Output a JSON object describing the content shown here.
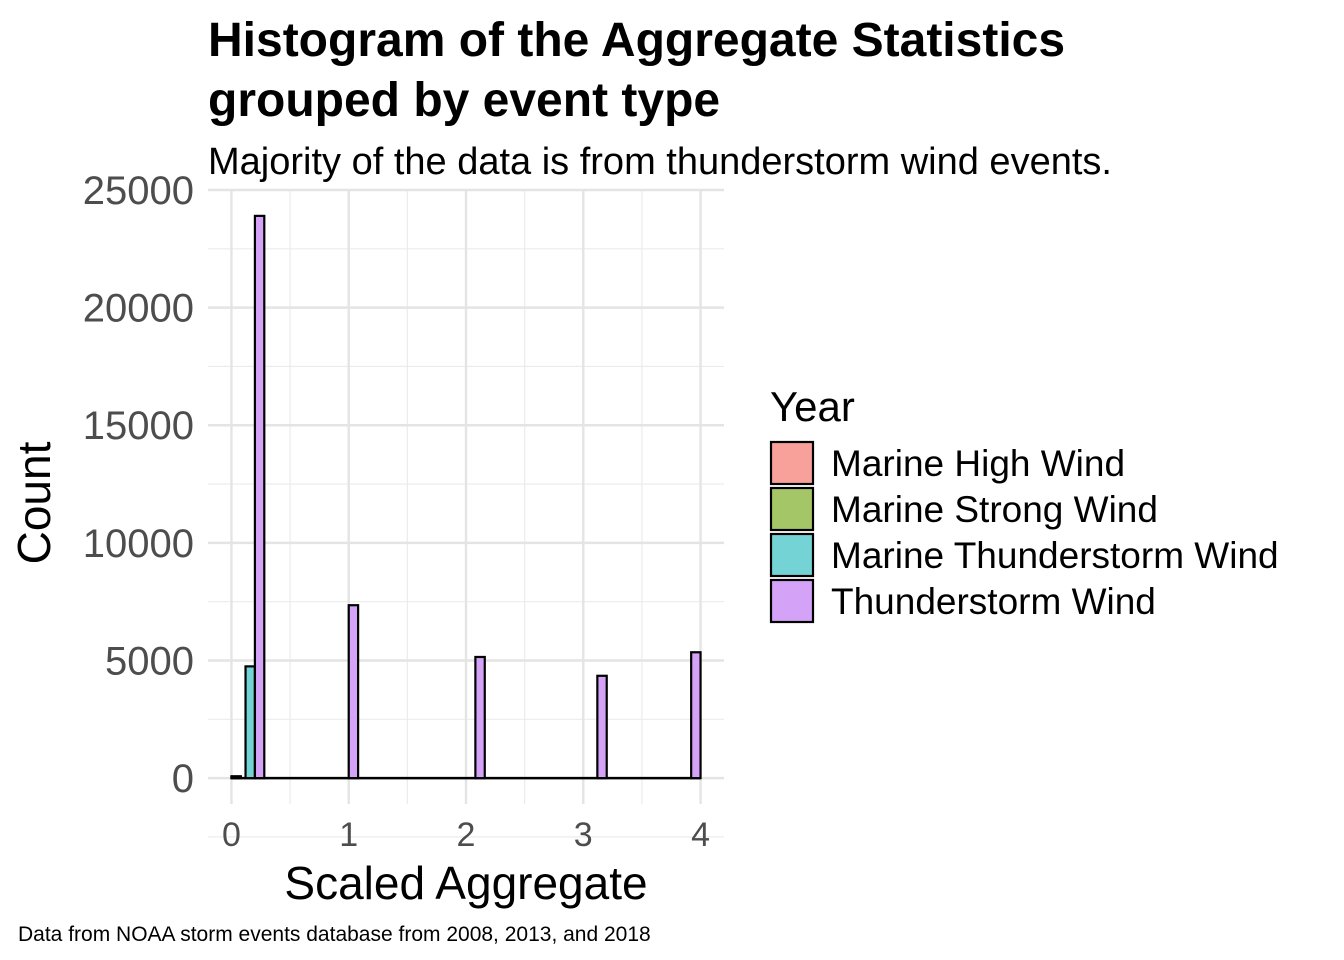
{
  "chart_data": {
    "type": "bar",
    "title_lines": [
      "Histogram of the Aggregate Statistics",
      "grouped by event type"
    ],
    "subtitle": "Majority of the data is from thunderstorm wind events.",
    "xlabel": "Scaled Aggregate",
    "ylabel": "Count",
    "caption": "Data from NOAA storm events database from 2008, 2013, and 2018",
    "xlim": [
      -0.2,
      4.2
    ],
    "ylim": [
      -1100,
      25000
    ],
    "x_ticks": [
      0,
      1,
      2,
      3,
      4
    ],
    "x_tick_labels": [
      "0",
      "1",
      "2",
      "3",
      "4"
    ],
    "y_ticks": [
      0,
      5000,
      10000,
      15000,
      20000,
      25000
    ],
    "y_tick_labels": [
      "0",
      "5000",
      "10000",
      "15000",
      "20000",
      "25000"
    ],
    "grid": true,
    "legend_position": "right",
    "legend_title": "Year",
    "bin_width": 0.08,
    "baseline_range": [
      0.0,
      4.0
    ],
    "series": [
      {
        "name": "Marine High Wind",
        "color": "#F8A19A",
        "bins": [
          {
            "x": 0.04,
            "count": 80
          }
        ]
      },
      {
        "name": "Marine Strong Wind",
        "color": "#A5C667",
        "bins": [
          {
            "x": 0.04,
            "count": 30
          }
        ]
      },
      {
        "name": "Marine Thunderstorm Wind",
        "color": "#73D3D5",
        "bins": [
          {
            "x": 0.16,
            "count": 4750
          }
        ]
      },
      {
        "name": "Thunderstorm Wind",
        "color": "#D4A2F7",
        "bins": [
          {
            "x": 0.24,
            "count": 23900
          },
          {
            "x": 1.04,
            "count": 7350
          },
          {
            "x": 2.12,
            "count": 5150
          },
          {
            "x": 3.16,
            "count": 4350
          },
          {
            "x": 3.96,
            "count": 5350
          }
        ]
      }
    ]
  }
}
